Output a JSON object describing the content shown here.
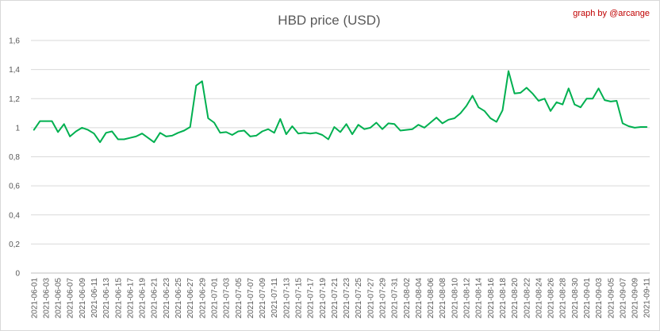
{
  "chart_data": {
    "type": "line",
    "title": "HBD price (USD)",
    "credit": "graph by @arcange",
    "xlabel": "",
    "ylabel": "",
    "ylim": [
      0,
      1.6
    ],
    "yticks": [
      "0",
      "0,2",
      "0,4",
      "0,6",
      "0,8",
      "1",
      "1,2",
      "1,4",
      "1,6"
    ],
    "ytick_values": [
      0,
      0.2,
      0.4,
      0.6,
      0.8,
      1.0,
      1.2,
      1.4,
      1.6
    ],
    "grid": "horizontal",
    "line_color": "#00b050",
    "x_tick_labels": [
      "2021-06-01",
      "2021-06-03",
      "2021-06-05",
      "2021-06-07",
      "2021-06-09",
      "2021-06-11",
      "2021-06-13",
      "2021-06-15",
      "2021-06-17",
      "2021-06-19",
      "2021-06-21",
      "2021-06-23",
      "2021-06-25",
      "2021-06-27",
      "2021-06-29",
      "2021-07-01",
      "2021-07-03",
      "2021-07-05",
      "2021-07-07",
      "2021-07-09",
      "2021-07-11",
      "2021-07-13",
      "2021-07-15",
      "2021-07-17",
      "2021-07-19",
      "2021-07-21",
      "2021-07-23",
      "2021-07-25",
      "2021-07-27",
      "2021-07-29",
      "2021-07-31",
      "2021-08-02",
      "2021-08-04",
      "2021-08-06",
      "2021-08-08",
      "2021-08-10",
      "2021-08-12",
      "2021-08-14",
      "2021-08-16",
      "2021-08-18",
      "2021-08-20",
      "2021-08-22",
      "2021-08-24",
      "2021-08-26",
      "2021-08-28",
      "2021-08-30",
      "2021-09-01",
      "2021-09-03",
      "2021-09-05",
      "2021-09-07",
      "2021-09-09",
      "2021-09-11"
    ],
    "series": [
      {
        "values": [
          0.985,
          1.045,
          1.045,
          1.045,
          0.97,
          1.025,
          0.94,
          0.975,
          1.0,
          0.985,
          0.96,
          0.9,
          0.965,
          0.975,
          0.92,
          0.92,
          0.93,
          0.94,
          0.96,
          0.93,
          0.9,
          0.965,
          0.94,
          0.945,
          0.965,
          0.98,
          1.005,
          1.29,
          1.32,
          1.065,
          1.035,
          0.965,
          0.97,
          0.95,
          0.975,
          0.98,
          0.94,
          0.945,
          0.975,
          0.99,
          0.965,
          1.06,
          0.955,
          1.01,
          0.96,
          0.965,
          0.96,
          0.965,
          0.95,
          0.92,
          1.005,
          0.97,
          1.025,
          0.955,
          1.02,
          0.99,
          1.0,
          1.035,
          0.99,
          1.03,
          1.025,
          0.98,
          0.985,
          0.99,
          1.02,
          1.0,
          1.035,
          1.07,
          1.03,
          1.055,
          1.065,
          1.1,
          1.15,
          1.22,
          1.14,
          1.115,
          1.065,
          1.04,
          1.12,
          1.39,
          1.235,
          1.24,
          1.275,
          1.235,
          1.185,
          1.2,
          1.115,
          1.175,
          1.16,
          1.27,
          1.16,
          1.14,
          1.2,
          1.2,
          1.27,
          1.19,
          1.18,
          1.185,
          1.03,
          1.01,
          1.0,
          1.005,
          1.005
        ]
      }
    ]
  }
}
